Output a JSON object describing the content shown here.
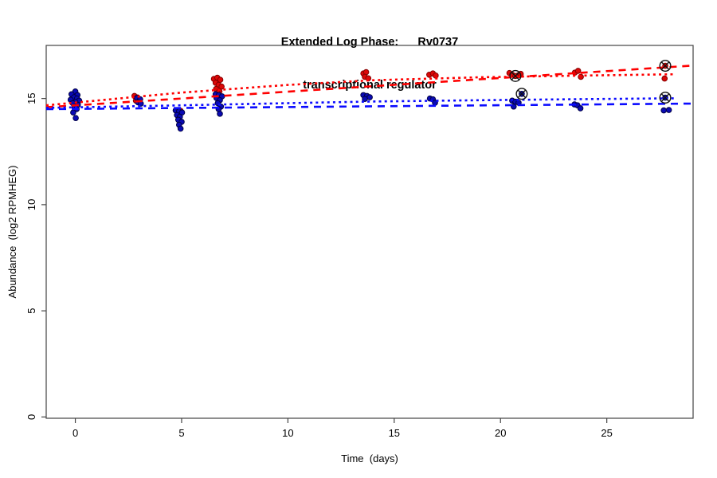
{
  "title": {
    "line1": "Extended Log Phase:      Rv0737",
    "line2": "transcriptional regulator"
  },
  "colors": {
    "point_red_fill": "#dd0808",
    "point_red_stroke": "#860000",
    "point_blue_fill": "#0a0ab4",
    "point_blue_stroke": "#000046",
    "line_red": "#ff0000",
    "line_blue": "#0b0bff",
    "marker_black": "#111111",
    "axis": "#444444"
  },
  "chart_data": {
    "type": "scatter",
    "title": "Extended Log Phase:      Rv0737  transcriptional regulator",
    "xlabel": "Time  (days)",
    "ylabel": "Abundance  (log2 RPMHEG)",
    "xlim": [
      -1.37,
      29.06
    ],
    "ylim": [
      -0.06,
      17.5
    ],
    "x_ticks": [
      0,
      5,
      10,
      15,
      20,
      25
    ],
    "y_ticks": [
      0,
      5,
      10,
      15
    ],
    "x_tick_labels": [
      "0",
      "5",
      "10",
      "15",
      "20",
      "25"
    ],
    "y_tick_labels": [
      "0",
      "5",
      "10",
      "15"
    ],
    "grid": false,
    "legend": "none",
    "series": [
      {
        "name": "red",
        "points": [
          [
            0.02,
            14.88
          ],
          [
            -0.08,
            14.78
          ],
          [
            2.78,
            15.12
          ],
          [
            2.92,
            15.05
          ],
          [
            2.85,
            14.9
          ],
          [
            4.82,
            14.2
          ],
          [
            4.95,
            14.42
          ],
          [
            6.52,
            15.92
          ],
          [
            6.68,
            15.98
          ],
          [
            6.82,
            15.88
          ],
          [
            6.6,
            15.74
          ],
          [
            6.74,
            15.64
          ],
          [
            6.88,
            15.56
          ],
          [
            6.62,
            15.45
          ],
          [
            6.78,
            15.34
          ],
          [
            6.7,
            15.26
          ],
          [
            13.55,
            16.18
          ],
          [
            13.68,
            16.24
          ],
          [
            13.62,
            16.02
          ],
          [
            13.78,
            15.95
          ],
          [
            16.65,
            16.12
          ],
          [
            16.82,
            16.18
          ],
          [
            16.95,
            16.08
          ],
          [
            20.42,
            16.2
          ],
          [
            20.55,
            16.12
          ],
          [
            20.85,
            16.1
          ],
          [
            20.95,
            16.16
          ],
          [
            23.5,
            16.22
          ],
          [
            23.65,
            16.3
          ],
          [
            23.78,
            16.02
          ],
          [
            27.72,
            15.94
          ]
        ]
      },
      {
        "name": "blue",
        "points": [
          [
            0.0,
            15.33
          ],
          [
            -0.18,
            15.2
          ],
          [
            0.1,
            15.16
          ],
          [
            -0.06,
            15.06
          ],
          [
            0.08,
            15.0
          ],
          [
            -0.22,
            14.94
          ],
          [
            0.18,
            14.9
          ],
          [
            0.0,
            14.84
          ],
          [
            -0.12,
            14.78
          ],
          [
            0.12,
            14.7
          ],
          [
            -0.04,
            14.6
          ],
          [
            0.06,
            14.5
          ],
          [
            -0.1,
            14.34
          ],
          [
            0.02,
            14.08
          ],
          [
            2.9,
            15.02
          ],
          [
            3.05,
            14.96
          ],
          [
            2.95,
            14.82
          ],
          [
            3.08,
            14.76
          ],
          [
            4.72,
            14.44
          ],
          [
            4.88,
            14.4
          ],
          [
            5.02,
            14.34
          ],
          [
            4.78,
            14.22
          ],
          [
            4.92,
            14.14
          ],
          [
            4.84,
            14.0
          ],
          [
            5.0,
            13.9
          ],
          [
            4.88,
            13.76
          ],
          [
            4.95,
            13.58
          ],
          [
            6.6,
            15.2
          ],
          [
            6.75,
            15.16
          ],
          [
            6.9,
            15.1
          ],
          [
            6.64,
            15.02
          ],
          [
            6.8,
            14.92
          ],
          [
            6.7,
            14.78
          ],
          [
            6.85,
            14.62
          ],
          [
            6.74,
            14.5
          ],
          [
            6.8,
            14.28
          ],
          [
            13.55,
            15.16
          ],
          [
            13.72,
            15.12
          ],
          [
            13.85,
            15.06
          ],
          [
            13.62,
            14.98
          ],
          [
            16.68,
            15.0
          ],
          [
            16.82,
            14.96
          ],
          [
            16.92,
            14.8
          ],
          [
            20.55,
            14.9
          ],
          [
            20.7,
            14.85
          ],
          [
            20.85,
            14.8
          ],
          [
            20.62,
            14.62
          ],
          [
            23.48,
            14.72
          ],
          [
            23.62,
            14.68
          ],
          [
            23.76,
            14.54
          ],
          [
            27.68,
            14.44
          ],
          [
            27.92,
            14.46
          ]
        ]
      }
    ],
    "outliers": {
      "red": [
        [
          20.7,
          16.06
        ],
        [
          27.75,
          16.54
        ]
      ],
      "blue": [
        [
          21.0,
          15.22
        ],
        [
          27.75,
          15.04
        ]
      ]
    },
    "trend_lines": [
      {
        "name": "red-dotted",
        "series": "red",
        "dash": "dot",
        "points": [
          [
            -1.37,
            14.68
          ],
          [
            5,
            15.28
          ],
          [
            10,
            15.64
          ],
          [
            14,
            15.86
          ],
          [
            19,
            16.0
          ],
          [
            24,
            16.08
          ],
          [
            28.2,
            16.14
          ]
        ]
      },
      {
        "name": "red-dashed",
        "series": "red",
        "dash": "long",
        "points": [
          [
            -1.37,
            14.59
          ],
          [
            29.06,
            16.55
          ]
        ]
      },
      {
        "name": "blue-dotted",
        "series": "blue",
        "dash": "dot",
        "points": [
          [
            -1.37,
            14.56
          ],
          [
            5,
            14.68
          ],
          [
            10,
            14.78
          ],
          [
            14,
            14.86
          ],
          [
            19,
            14.92
          ],
          [
            24,
            14.97
          ],
          [
            28.2,
            15.01
          ]
        ]
      },
      {
        "name": "blue-dashed",
        "series": "blue",
        "dash": "long",
        "points": [
          [
            -1.37,
            14.5
          ],
          [
            29.06,
            14.76
          ]
        ]
      }
    ]
  }
}
